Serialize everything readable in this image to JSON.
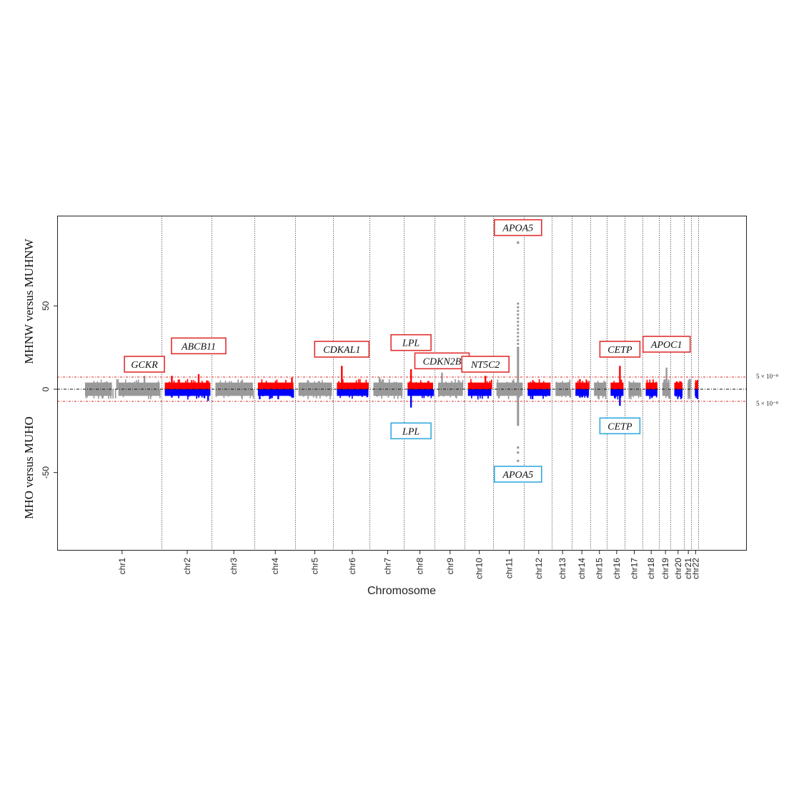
{
  "chart_data": {
    "type": "scatter",
    "subtype": "miami-plot",
    "xlabel": "Chromosome",
    "ylabel_top": "MHNW versus MUHNW",
    "ylabel_bottom": "MHO versus MUHO",
    "yticks": [
      50,
      0,
      -50
    ],
    "ytick_labels": [
      "50",
      "0",
      "-50"
    ],
    "ylim": [
      -97,
      103
    ],
    "threshold_value": 7.3,
    "threshold_label_top": "5 × 10⁻⁸",
    "threshold_label_bottom": "5 × 10⁻⁸",
    "colors": {
      "top_alt": "#ff0000",
      "bottom_alt": "#0000ff",
      "neutral": "#999999",
      "threshold": "#dd2222",
      "top_box": "#e03030",
      "bottom_box": "#33aadd"
    },
    "chromosomes": [
      {
        "name": "chr1",
        "start": 0,
        "end": 0.1245,
        "colored": false,
        "extra_gap": true
      },
      {
        "name": "chr2",
        "start": 0.1245,
        "end": 0.2036,
        "colored": true
      },
      {
        "name": "chr3",
        "start": 0.2036,
        "end": 0.2699,
        "colored": false
      },
      {
        "name": "chr4",
        "start": 0.2699,
        "end": 0.3333,
        "colored": true
      },
      {
        "name": "chr5",
        "start": 0.3333,
        "end": 0.3933,
        "colored": false
      },
      {
        "name": "chr6",
        "start": 0.3933,
        "end": 0.4503,
        "colored": true
      },
      {
        "name": "chr7",
        "start": 0.4503,
        "end": 0.5036,
        "colored": false
      },
      {
        "name": "chr8",
        "start": 0.5036,
        "end": 0.5513,
        "colored": true
      },
      {
        "name": "chr9",
        "start": 0.5513,
        "end": 0.5979,
        "colored": false
      },
      {
        "name": "chr10",
        "start": 0.5979,
        "end": 0.6425,
        "colored": true
      },
      {
        "name": "chr11",
        "start": 0.6425,
        "end": 0.6912,
        "colored": false
      },
      {
        "name": "chr12",
        "start": 0.6912,
        "end": 0.7347,
        "colored": true
      },
      {
        "name": "chr13",
        "start": 0.7347,
        "end": 0.7658,
        "colored": false
      },
      {
        "name": "chr14",
        "start": 0.7658,
        "end": 0.7948,
        "colored": true
      },
      {
        "name": "chr15",
        "start": 0.7948,
        "end": 0.8207,
        "colored": false
      },
      {
        "name": "chr16",
        "start": 0.8207,
        "end": 0.8487,
        "colored": true
      },
      {
        "name": "chr17",
        "start": 0.8487,
        "end": 0.8756,
        "colored": false
      },
      {
        "name": "chr18",
        "start": 0.8756,
        "end": 0.9016,
        "colored": true
      },
      {
        "name": "chr19",
        "start": 0.9016,
        "end": 0.9202,
        "colored": false
      },
      {
        "name": "chr20",
        "start": 0.9202,
        "end": 0.9409,
        "colored": true
      },
      {
        "name": "chr21",
        "start": 0.9409,
        "end": 0.9523,
        "colored": false
      },
      {
        "name": "chr22",
        "start": 0.9523,
        "end": 0.9637,
        "colored": true
      }
    ],
    "peaks": [
      {
        "chrom": "chr1",
        "pos": 0.78,
        "top": 8,
        "bottom": -2
      },
      {
        "chrom": "chr2",
        "pos": 0.15,
        "top": 8,
        "bottom": -5
      },
      {
        "chrom": "chr2",
        "pos": 0.72,
        "top": 9,
        "bottom": -5
      },
      {
        "chrom": "chr2",
        "pos": 0.92,
        "top": 5,
        "bottom": -7
      },
      {
        "chrom": "chr4",
        "pos": 0.05,
        "top": 4,
        "bottom": -6
      },
      {
        "chrom": "chr4",
        "pos": 0.55,
        "top": 4,
        "bottom": -6
      },
      {
        "chrom": "chr4",
        "pos": 0.92,
        "top": 7,
        "bottom": -5
      },
      {
        "chrom": "chr6",
        "pos": 0.15,
        "top": 14,
        "bottom": -4
      },
      {
        "chrom": "chr7",
        "pos": 0.2,
        "top": 7,
        "bottom": -4
      },
      {
        "chrom": "chr8",
        "pos": 0.13,
        "top": 12,
        "bottom": -11
      },
      {
        "chrom": "chr9",
        "pos": 0.15,
        "top": 10,
        "bottom": -3
      },
      {
        "chrom": "chr10",
        "pos": 0.7,
        "top": 8,
        "bottom": -4
      },
      {
        "chrom": "chr11",
        "pos": 0.78,
        "top": 88,
        "bottom": -43,
        "dense_top": 52,
        "dense_bottom": -38
      },
      {
        "chrom": "chr12",
        "pos": 0.2,
        "top": 4,
        "bottom": -6
      },
      {
        "chrom": "chr14",
        "pos": 0.3,
        "top": 6,
        "bottom": -5
      },
      {
        "chrom": "chr16",
        "pos": 0.65,
        "top": 14,
        "bottom": -10
      },
      {
        "chrom": "chr19",
        "pos": 0.5,
        "top": 13,
        "bottom": -4
      }
    ],
    "gene_labels_top": [
      {
        "text": "GCKR",
        "chrom": "chr1",
        "pos": 0.78,
        "y": 15
      },
      {
        "text": "ABCB11",
        "chrom": "chr2",
        "pos": 0.72,
        "y": 26
      },
      {
        "text": "CDKAL1",
        "chrom": "chr6",
        "pos": 0.15,
        "y": 24
      },
      {
        "text": "LPL",
        "chrom": "chr8",
        "pos": 0.13,
        "y": 28
      },
      {
        "text": "CDKN2B",
        "chrom": "chr9",
        "pos": 0.15,
        "y": 17
      },
      {
        "text": "NT5C2",
        "chrom": "chr10",
        "pos": 0.7,
        "y": 15
      },
      {
        "text": "APOA5",
        "chrom": "chr11",
        "pos": 0.78,
        "y": 97
      },
      {
        "text": "CETP",
        "chrom": "chr16",
        "pos": 0.65,
        "y": 24
      },
      {
        "text": "APOC1",
        "chrom": "chr19",
        "pos": 0.5,
        "y": 27
      }
    ],
    "gene_labels_bottom": [
      {
        "text": "LPL",
        "chrom": "chr8",
        "pos": 0.13,
        "y": -25
      },
      {
        "text": "APOA5",
        "chrom": "chr11",
        "pos": 0.78,
        "y": -51
      },
      {
        "text": "CETP",
        "chrom": "chr16",
        "pos": 0.65,
        "y": -22
      }
    ]
  }
}
